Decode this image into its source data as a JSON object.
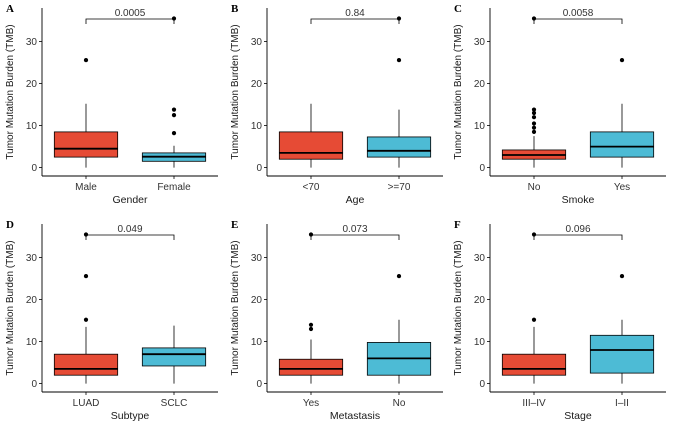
{
  "chart_data": [
    {
      "panel": "A",
      "type": "box",
      "xlabel": "Gender",
      "ylabel": "Tumor Mutation Burden (TMB)",
      "ylim": [
        -2,
        38
      ],
      "yticks": [
        0,
        10,
        20,
        30
      ],
      "pvalue": "0.0005",
      "groups": [
        {
          "name": "Male",
          "color": "#e64b35",
          "min": 0,
          "q1": 2.5,
          "median": 4.5,
          "q3": 8.5,
          "max": 15.2,
          "outliers": [
            25.6
          ]
        },
        {
          "name": "Female",
          "color": "#4dbbd5",
          "min": 0,
          "q1": 1.5,
          "median": 2.6,
          "q3": 3.5,
          "max": 5.2,
          "outliers": [
            8.2,
            12.5,
            13.8,
            35.5
          ]
        }
      ]
    },
    {
      "panel": "B",
      "type": "box",
      "xlabel": "Age",
      "ylabel": "Tumor Mutation Burden (TMB)",
      "ylim": [
        -2,
        38
      ],
      "yticks": [
        0,
        10,
        20,
        30
      ],
      "pvalue": "0.84",
      "groups": [
        {
          "name": "<70",
          "color": "#e64b35",
          "min": 0,
          "q1": 2.0,
          "median": 3.5,
          "q3": 8.5,
          "max": 15.2,
          "outliers": []
        },
        {
          "name": ">=70",
          "color": "#4dbbd5",
          "min": 0,
          "q1": 2.5,
          "median": 4.0,
          "q3": 7.3,
          "max": 13.8,
          "outliers": [
            25.6,
            35.5
          ]
        }
      ]
    },
    {
      "panel": "C",
      "type": "box",
      "xlabel": "Smoke",
      "ylabel": "Tumor Mutation Burden (TMB)",
      "ylim": [
        -2,
        38
      ],
      "yticks": [
        0,
        10,
        20,
        30
      ],
      "pvalue": "0.0058",
      "groups": [
        {
          "name": "No",
          "color": "#e64b35",
          "min": 0,
          "q1": 2.0,
          "median": 3.0,
          "q3": 4.2,
          "max": 7.5,
          "outliers": [
            8.5,
            9.5,
            10.5,
            12.0,
            13.0,
            13.8,
            35.5
          ]
        },
        {
          "name": "Yes",
          "color": "#4dbbd5",
          "min": 0,
          "q1": 2.5,
          "median": 5.0,
          "q3": 8.5,
          "max": 15.2,
          "outliers": [
            25.6
          ]
        }
      ]
    },
    {
      "panel": "D",
      "type": "box",
      "xlabel": "Subtype",
      "ylabel": "Tumor Mutation Burden (TMB)",
      "ylim": [
        -2,
        38
      ],
      "yticks": [
        0,
        10,
        20,
        30
      ],
      "pvalue": "0.049",
      "groups": [
        {
          "name": "LUAD",
          "color": "#e64b35",
          "min": 0,
          "q1": 2.0,
          "median": 3.5,
          "q3": 7.0,
          "max": 13.5,
          "outliers": [
            15.2,
            25.6,
            35.5
          ]
        },
        {
          "name": "SCLC",
          "color": "#4dbbd5",
          "min": 0,
          "q1": 4.2,
          "median": 7.0,
          "q3": 8.5,
          "max": 13.8,
          "outliers": []
        }
      ]
    },
    {
      "panel": "E",
      "type": "box",
      "xlabel": "Metastasis",
      "ylabel": "Tumor Mutation Burden (TMB)",
      "ylim": [
        -2,
        38
      ],
      "yticks": [
        0,
        10,
        20,
        30
      ],
      "pvalue": "0.073",
      "groups": [
        {
          "name": "Yes",
          "color": "#e64b35",
          "min": 0,
          "q1": 2.0,
          "median": 3.5,
          "q3": 5.8,
          "max": 10.5,
          "outliers": [
            13.0,
            14.0,
            35.5
          ]
        },
        {
          "name": "No",
          "color": "#4dbbd5",
          "min": 0,
          "q1": 2.0,
          "median": 6.0,
          "q3": 9.8,
          "max": 15.2,
          "outliers": [
            25.6
          ]
        }
      ]
    },
    {
      "panel": "F",
      "type": "box",
      "xlabel": "Stage",
      "ylabel": "Tumor Mutation Burden (TMB)",
      "ylim": [
        -2,
        38
      ],
      "yticks": [
        0,
        10,
        20,
        30
      ],
      "pvalue": "0.096",
      "groups": [
        {
          "name": "III–IV",
          "color": "#e64b35",
          "min": 0,
          "q1": 2.0,
          "median": 3.5,
          "q3": 7.0,
          "max": 13.5,
          "outliers": [
            15.2,
            35.5
          ]
        },
        {
          "name": "I–II",
          "color": "#4dbbd5",
          "min": 0,
          "q1": 2.5,
          "median": 8.0,
          "q3": 11.5,
          "max": 15.2,
          "outliers": [
            25.6
          ]
        }
      ]
    }
  ]
}
